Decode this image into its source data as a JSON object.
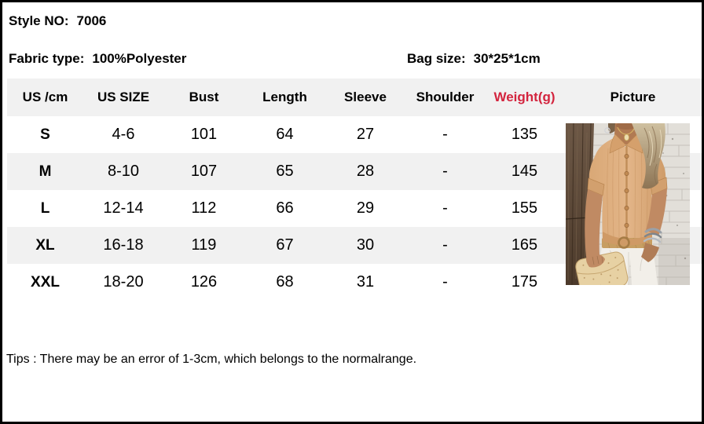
{
  "page": {
    "style_no_label": "Style NO:",
    "style_no_value": "7006",
    "fabric_label": "Fabric type:",
    "fabric_value": "100%Polyester",
    "bag_label": "Bag size:",
    "bag_value": "30*25*1cm",
    "tips": "Tips : There may be an error of 1-3cm, which belongs to the normalrange."
  },
  "table": {
    "columns": [
      "US /cm",
      "US SIZE",
      "Bust",
      "Length",
      "Sleeve",
      "Shoulder",
      "Weight(g)",
      "Picture"
    ],
    "rows": [
      [
        "S",
        "4-6",
        "101",
        "64",
        "27",
        "-",
        "135"
      ],
      [
        "M",
        "8-10",
        "107",
        "65",
        "28",
        "-",
        "145"
      ],
      [
        "L",
        "12-14",
        "112",
        "66",
        "29",
        "-",
        "155"
      ],
      [
        "XL",
        "16-18",
        "119",
        "67",
        "30",
        "-",
        "165"
      ],
      [
        "XXL",
        "18-20",
        "126",
        "68",
        "31",
        "-",
        "175"
      ]
    ]
  },
  "picture": {
    "description": "model wearing tan short-sleeve button-up shirt with white pants and straw clutch"
  },
  "colors": {
    "accent_red": "#d3243e",
    "row_alt_gray": "#f1f1f1"
  }
}
